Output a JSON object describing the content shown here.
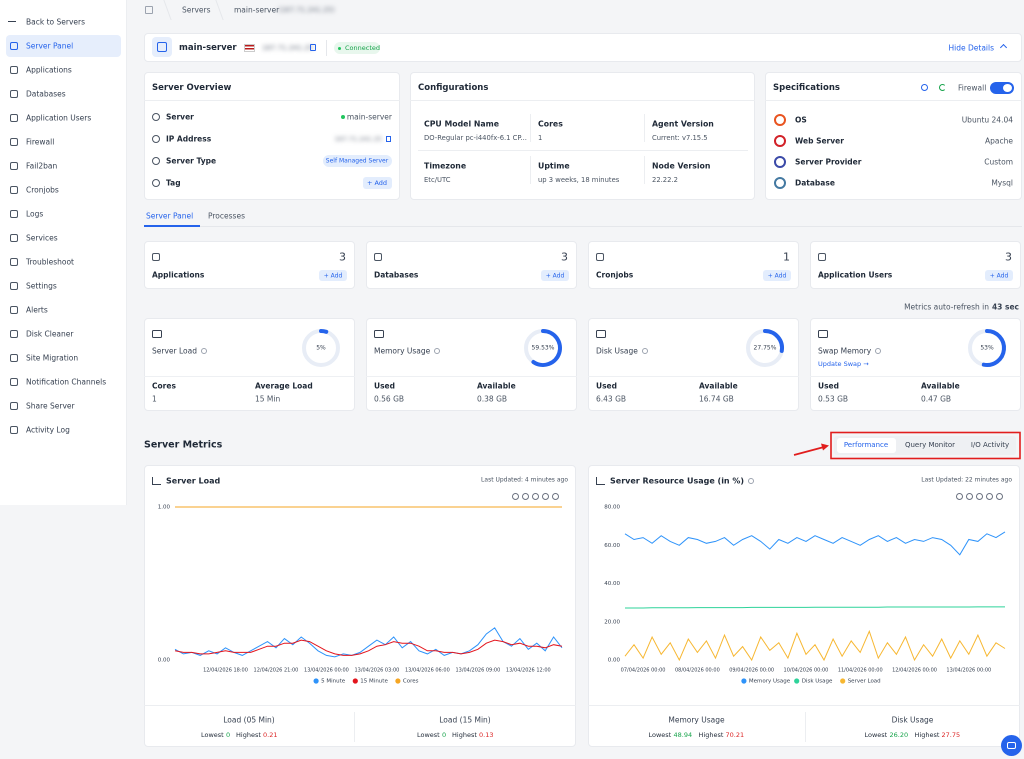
{
  "sidebar": {
    "back": "Back to Servers",
    "items": [
      "Server Panel",
      "Applications",
      "Databases",
      "Application Users",
      "Firewall",
      "Fail2ban",
      "Cronjobs",
      "Logs",
      "Services",
      "Troubleshoot",
      "Settings",
      "Alerts",
      "Disk Cleaner",
      "Site Migration",
      "Notification Channels",
      "Share Server",
      "Activity Log"
    ]
  },
  "breadcrumb": {
    "parent": "Servers",
    "current": "main-server",
    "ip": "(167.71.241.25)"
  },
  "header": {
    "name": "main-server",
    "ip": "167.71.241.25",
    "status": "Connected",
    "toggle": "Hide Details"
  },
  "overview": {
    "title": "Server Overview",
    "rows": [
      [
        "Server",
        "main-server"
      ],
      [
        "IP Address",
        "167.71.241.25"
      ],
      [
        "Server Type",
        "Self Managed Server"
      ],
      [
        "Tag",
        "+ Add"
      ]
    ]
  },
  "configurations": {
    "title": "Configurations",
    "items": [
      [
        "CPU Model Name",
        "DO-Regular pc-i440fx-6.1 CP..."
      ],
      [
        "Cores",
        "1"
      ],
      [
        "Agent Version",
        "Current: v7.15.5"
      ],
      [
        "Timezone",
        "Etc/UTC"
      ],
      [
        "Uptime",
        "up 3 weeks, 18 minutes"
      ],
      [
        "Node Version",
        "22.22.2"
      ]
    ]
  },
  "specifications": {
    "title": "Specifications",
    "firewall": "Firewall",
    "rows": [
      [
        "OS",
        "Ubuntu 24.04"
      ],
      [
        "Web Server",
        "Apache"
      ],
      [
        "Server Provider",
        "Custom"
      ],
      [
        "Database",
        "Mysql"
      ]
    ]
  },
  "tabs": [
    "Server Panel",
    "Processes"
  ],
  "counts": [
    {
      "label": "Applications",
      "count": "3",
      "action": "+ Add"
    },
    {
      "label": "Databases",
      "count": "3",
      "action": "+ Add"
    },
    {
      "label": "Cronjobs",
      "count": "1",
      "action": "+ Add"
    },
    {
      "label": "Application Users",
      "count": "3",
      "action": "+ Add"
    }
  ],
  "refresh": {
    "text": "Metrics auto-refresh in",
    "seconds": "43 sec"
  },
  "metrics": [
    {
      "title": "Server Load",
      "gauge": {
        "value": 5,
        "label": "5%"
      },
      "stats": [
        [
          "Cores",
          "1"
        ],
        [
          "Average Load",
          "15 Min"
        ]
      ]
    },
    {
      "title": "Memory Usage",
      "gauge": {
        "value": 59.53,
        "label": "59.53%"
      },
      "stats": [
        [
          "Used",
          "0.56 GB"
        ],
        [
          "Available",
          "0.38 GB"
        ]
      ]
    },
    {
      "title": "Disk Usage",
      "gauge": {
        "value": 27.75,
        "label": "27.75%"
      },
      "stats": [
        [
          "Used",
          "6.43 GB"
        ],
        [
          "Available",
          "16.74 GB"
        ]
      ]
    },
    {
      "title": "Swap Memory",
      "link": "Update Swap →",
      "gauge": {
        "value": 53,
        "label": "53%"
      },
      "stats": [
        [
          "Used",
          "0.53 GB"
        ],
        [
          "Available",
          "0.47 GB"
        ]
      ]
    }
  ],
  "server_metrics": {
    "title": "Server Metrics",
    "buttons": [
      "Performance",
      "Query Monitor",
      "I/O Activity"
    ]
  },
  "chart_data": [
    {
      "type": "line",
      "title": "Server Load",
      "last_updated": "Last Updated: 4 minutes ago",
      "categories": [
        null,
        null,
        null,
        null,
        null,
        null,
        "12/04/2026 18:00",
        null,
        null,
        null,
        null,
        null,
        "12/04/2026 21:00",
        null,
        null,
        null,
        null,
        null,
        "13/04/2026 00:00",
        null,
        null,
        null,
        null,
        null,
        "13/04/2026 03:00",
        null,
        null,
        null,
        null,
        null,
        "13/04/2026 06:00",
        null,
        null,
        null,
        null,
        null,
        "13/04/2026 09:00",
        null,
        null,
        null,
        null,
        null,
        "13/04/2026 12:00",
        null,
        null,
        null,
        null
      ],
      "series": [
        {
          "name": "5 Minute",
          "color": "#2e93fa",
          "values": [
            0.07,
            0.04,
            0.05,
            0.03,
            0.06,
            0.04,
            0.08,
            0.05,
            0.03,
            0.06,
            0.09,
            0.12,
            0.08,
            0.14,
            0.1,
            0.15,
            0.11,
            0.06,
            0.03,
            0.02,
            0.04,
            0.03,
            0.05,
            0.09,
            0.13,
            0.1,
            0.15,
            0.08,
            0.12,
            0.06,
            0.04,
            0.07,
            0.03,
            0.05,
            0.04,
            0.06,
            0.1,
            0.17,
            0.21,
            0.12,
            0.09,
            0.14,
            0.07,
            0.11,
            0.06,
            0.15,
            0.08
          ]
        },
        {
          "name": "15 Minute",
          "color": "#e3151d",
          "values": [
            0.06,
            0.05,
            0.05,
            0.04,
            0.04,
            0.05,
            0.06,
            0.05,
            0.05,
            0.05,
            0.07,
            0.09,
            0.09,
            0.11,
            0.11,
            0.13,
            0.12,
            0.09,
            0.06,
            0.04,
            0.03,
            0.03,
            0.04,
            0.06,
            0.09,
            0.1,
            0.12,
            0.11,
            0.11,
            0.09,
            0.06,
            0.06,
            0.05,
            0.05,
            0.04,
            0.05,
            0.07,
            0.11,
            0.13,
            0.12,
            0.1,
            0.11,
            0.09,
            0.09,
            0.08,
            0.1,
            0.09
          ]
        },
        {
          "name": "Cores",
          "color": "#f5a623",
          "values": [
            1,
            1,
            1,
            1,
            1,
            1,
            1,
            1,
            1,
            1,
            1,
            1,
            1,
            1,
            1,
            1,
            1,
            1,
            1,
            1,
            1,
            1,
            1,
            1,
            1,
            1,
            1,
            1,
            1,
            1,
            1,
            1,
            1,
            1,
            1,
            1,
            1,
            1,
            1,
            1,
            1,
            1,
            1,
            1,
            1,
            1,
            1
          ]
        }
      ],
      "ylim": [
        0,
        1
      ],
      "yticks": [
        {
          "value": 0,
          "label": "0.00"
        },
        {
          "value": 1,
          "label": "1.00"
        }
      ],
      "grid": false
    },
    {
      "type": "line",
      "title": "Server Resource Usage (in %)",
      "last_updated": "Last Updated: 22 minutes ago",
      "categories": [
        null,
        null,
        "07/04/2026 00:00",
        null,
        null,
        null,
        null,
        null,
        "08/04/2026 00:00",
        null,
        null,
        null,
        null,
        null,
        "09/04/2026 00:00",
        null,
        null,
        null,
        null,
        null,
        "10/04/2026 00:00",
        null,
        null,
        null,
        null,
        null,
        "11/04/2026 00:00",
        null,
        null,
        null,
        null,
        null,
        "12/04/2026 00:00",
        null,
        null,
        null,
        null,
        null,
        "13/04/2026 00:00",
        null,
        null,
        null,
        null
      ],
      "series": [
        {
          "name": "Memory Usage",
          "color": "#2e93fa",
          "values": [
            66,
            63,
            64,
            61,
            65,
            62,
            60,
            64,
            63,
            61,
            62,
            64,
            60,
            63,
            65,
            62,
            58,
            63,
            61,
            64,
            62,
            65,
            63,
            61,
            64,
            62,
            60,
            63,
            65,
            62,
            64,
            61,
            63,
            62,
            64,
            63,
            60,
            55,
            63,
            62,
            66,
            64,
            67
          ]
        },
        {
          "name": "Disk Usage",
          "color": "#2ed39a",
          "values": [
            27.2,
            27.2,
            27.2,
            27.3,
            27.3,
            27.3,
            27.3,
            27.3,
            27.4,
            27.4,
            27.4,
            27.4,
            27.4,
            27.4,
            27.5,
            27.5,
            27.5,
            27.5,
            27.5,
            27.5,
            27.5,
            27.6,
            27.6,
            27.6,
            27.6,
            27.6,
            27.6,
            27.6,
            27.6,
            27.7,
            27.7,
            27.7,
            27.7,
            27.7,
            27.7,
            27.7,
            27.7,
            27.7,
            27.7,
            27.75,
            27.75,
            27.75,
            27.75
          ]
        },
        {
          "name": "Server Load",
          "color": "#f7b731",
          "values": [
            2,
            8,
            1,
            12,
            3,
            9,
            0,
            11,
            4,
            10,
            1,
            13,
            2,
            7,
            0,
            12,
            5,
            9,
            1,
            14,
            3,
            8,
            0,
            11,
            2,
            10,
            4,
            15,
            1,
            9,
            3,
            12,
            0,
            8,
            2,
            11,
            1,
            10,
            3,
            13,
            2,
            9,
            6
          ]
        }
      ],
      "ylim": [
        0,
        80
      ],
      "yticks": [
        {
          "value": 0,
          "label": "0.00"
        },
        {
          "value": 20,
          "label": "20.00"
        },
        {
          "value": 40,
          "label": "40.00"
        },
        {
          "value": 60,
          "label": "60.00"
        },
        {
          "value": 80,
          "label": "80.00"
        }
      ],
      "grid": false
    }
  ],
  "summary_labels": {
    "lowest": "Lowest",
    "highest": "Highest"
  },
  "summaries": [
    [
      {
        "title": "Load (05 Min)",
        "lowest": "0",
        "highest": "0.21"
      },
      {
        "title": "Load (15 Min)",
        "lowest": "0",
        "highest": "0.13"
      }
    ],
    [
      {
        "title": "Memory Usage",
        "lowest": "48.94",
        "highest": "70.21"
      },
      {
        "title": "Disk Usage",
        "lowest": "26.20",
        "highest": "27.75"
      }
    ]
  ]
}
